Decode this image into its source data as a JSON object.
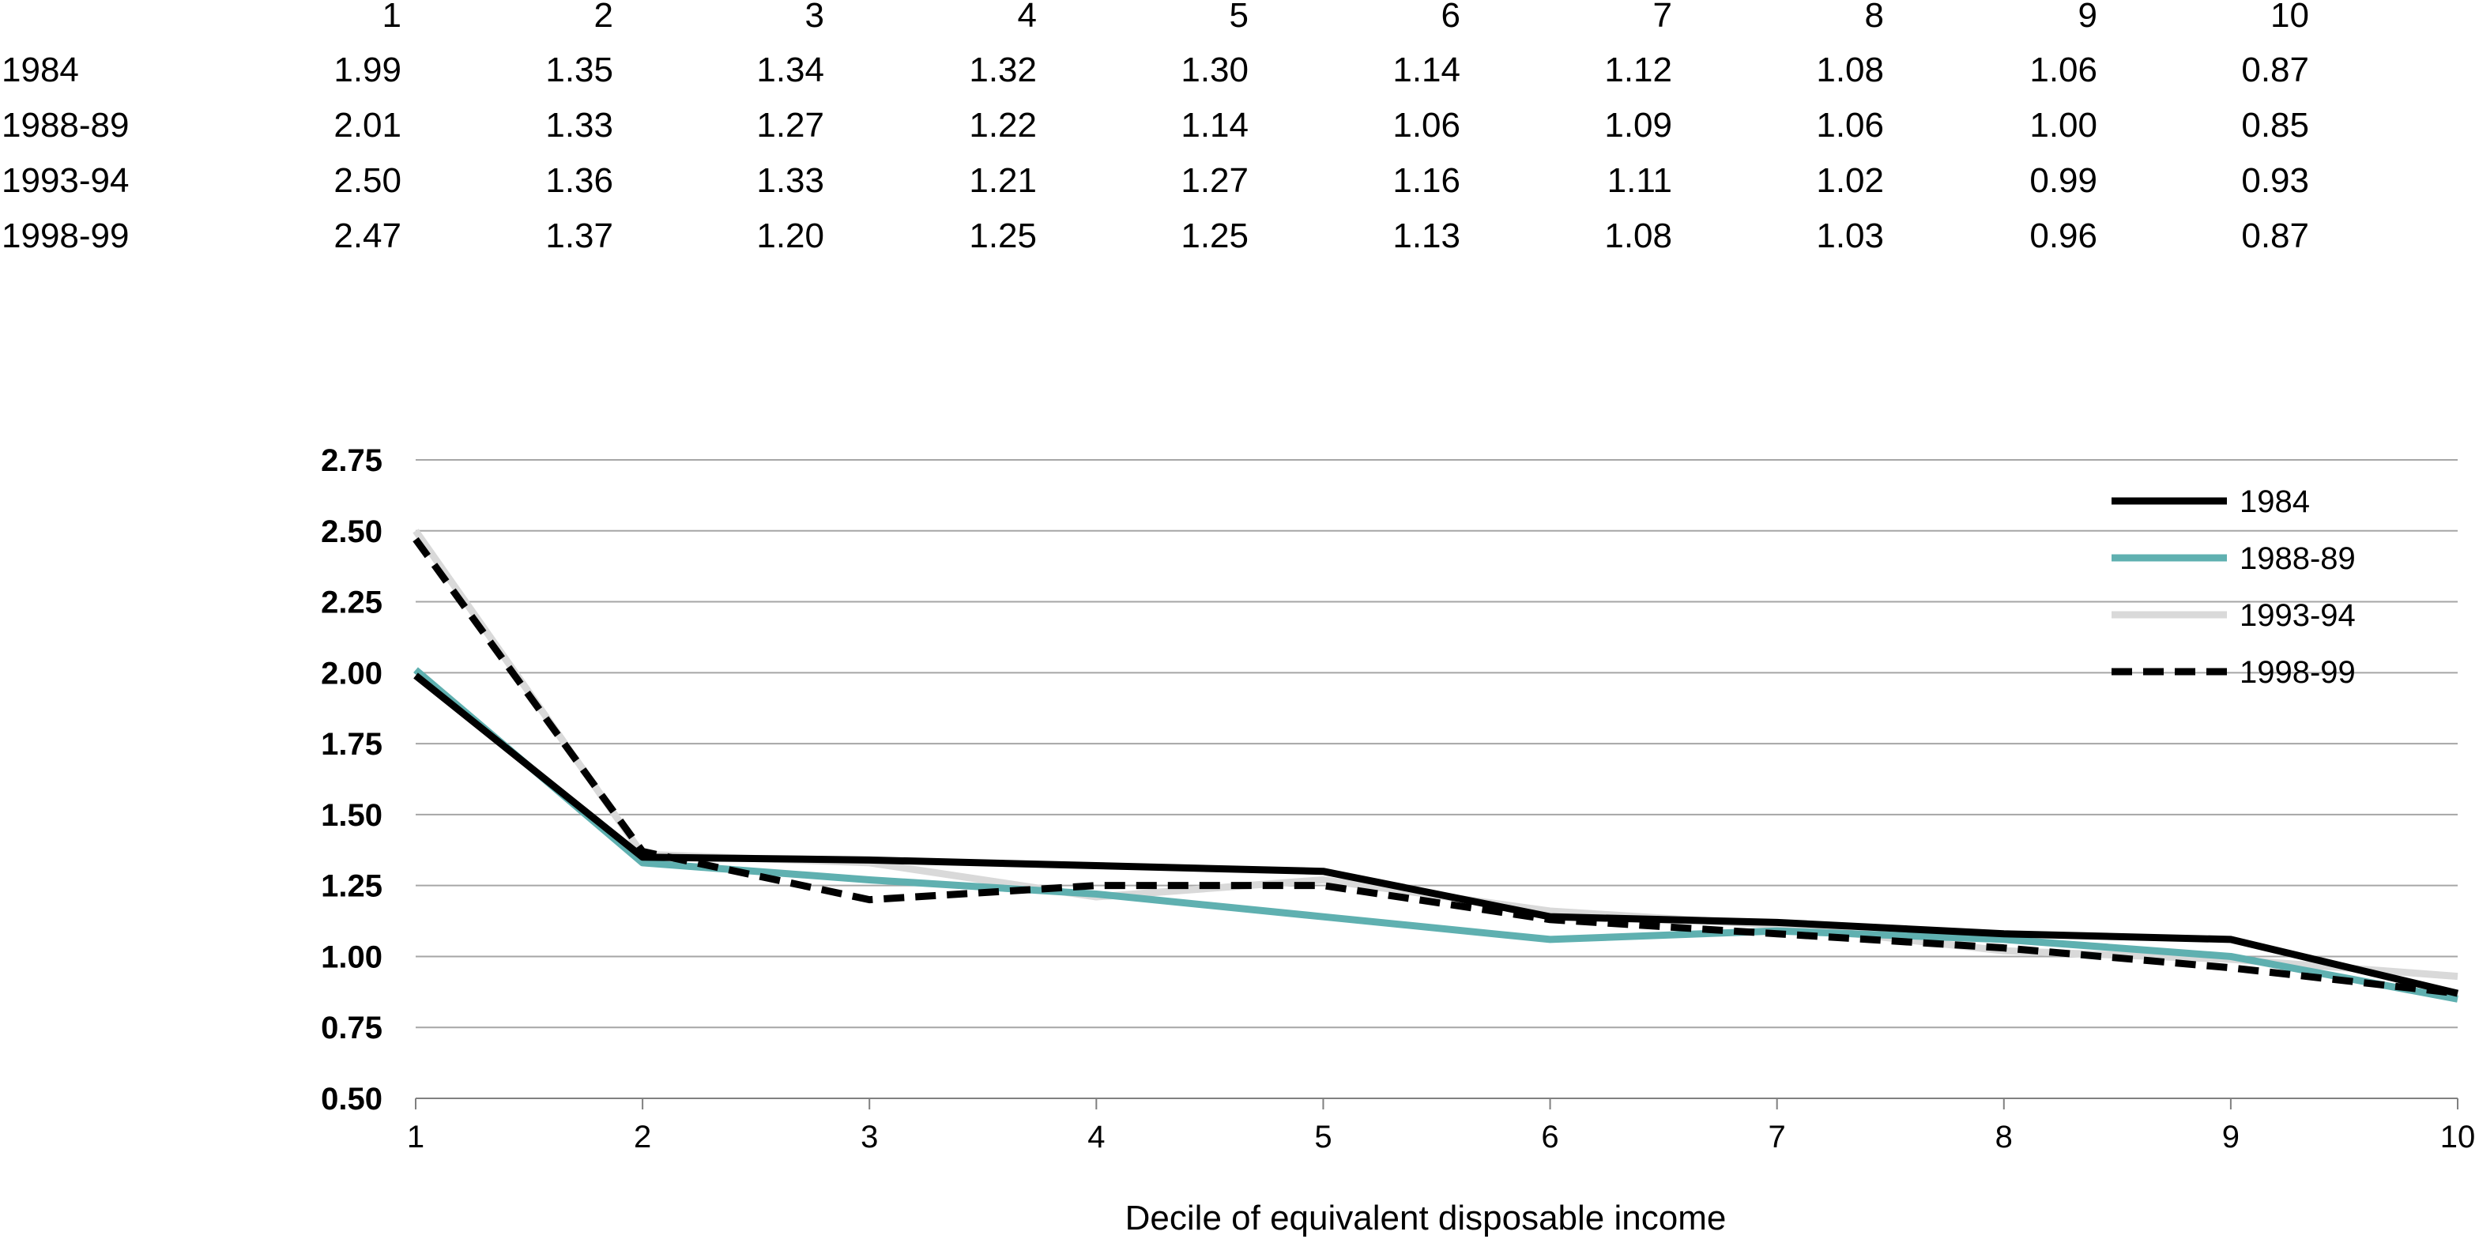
{
  "table": {
    "columns": [
      "1",
      "2",
      "3",
      "4",
      "5",
      "6",
      "7",
      "8",
      "9",
      "10"
    ],
    "rows": [
      {
        "label": "1984",
        "values": [
          "1.99",
          "1.35",
          "1.34",
          "1.32",
          "1.30",
          "1.14",
          "1.12",
          "1.08",
          "1.06",
          "0.87"
        ]
      },
      {
        "label": "1988-89",
        "values": [
          "2.01",
          "1.33",
          "1.27",
          "1.22",
          "1.14",
          "1.06",
          "1.09",
          "1.06",
          "1.00",
          "0.85"
        ]
      },
      {
        "label": "1993-94",
        "values": [
          "2.50",
          "1.36",
          "1.33",
          "1.21",
          "1.27",
          "1.16",
          "1.11",
          "1.02",
          "0.99",
          "0.93"
        ]
      },
      {
        "label": "1998-99",
        "values": [
          "2.47",
          "1.37",
          "1.20",
          "1.25",
          "1.25",
          "1.13",
          "1.08",
          "1.03",
          "0.96",
          "0.87"
        ]
      }
    ]
  },
  "chart_data": {
    "type": "line",
    "title": "",
    "xlabel": "Decile of equivalent disposable income",
    "ylabel": "",
    "x": [
      1,
      2,
      3,
      4,
      5,
      6,
      7,
      8,
      9,
      10
    ],
    "xticks": [
      "1",
      "2",
      "3",
      "4",
      "5",
      "6",
      "7",
      "8",
      "9",
      "10"
    ],
    "ylim": [
      0.5,
      2.75
    ],
    "yticks": [
      "0.50",
      "0.75",
      "1.00",
      "1.25",
      "1.50",
      "1.75",
      "2.00",
      "2.25",
      "2.50",
      "2.75"
    ],
    "grid": "horizontal",
    "legend": "top-right",
    "series": [
      {
        "name": "1984",
        "color": "#000000",
        "style": "solid",
        "values": [
          1.99,
          1.35,
          1.34,
          1.32,
          1.3,
          1.14,
          1.12,
          1.08,
          1.06,
          0.87
        ]
      },
      {
        "name": "1988-89",
        "color": "#5fb0b0",
        "style": "solid",
        "values": [
          2.01,
          1.33,
          1.27,
          1.22,
          1.14,
          1.06,
          1.09,
          1.06,
          1.0,
          0.85
        ]
      },
      {
        "name": "1993-94",
        "color": "#d9d9d9",
        "style": "solid",
        "values": [
          2.5,
          1.36,
          1.33,
          1.21,
          1.27,
          1.16,
          1.11,
          1.02,
          0.99,
          0.93
        ]
      },
      {
        "name": "1998-99",
        "color": "#000000",
        "style": "dashed",
        "values": [
          2.47,
          1.37,
          1.2,
          1.25,
          1.25,
          1.13,
          1.08,
          1.03,
          0.96,
          0.87
        ]
      }
    ]
  }
}
